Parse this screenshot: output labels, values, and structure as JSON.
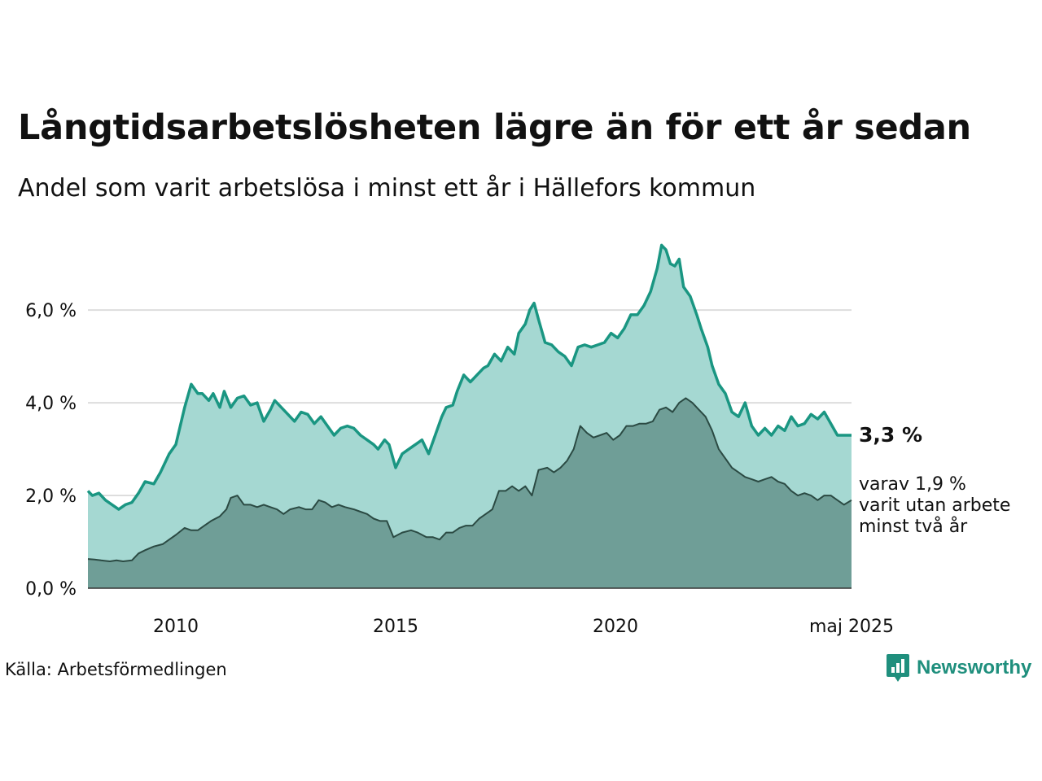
{
  "header": {
    "title": "Långtidsarbetslösheten lägre än för ett år sedan",
    "subtitle": "Andel som varit arbetslösa i minst ett år i Hällefors kommun"
  },
  "annotation": {
    "main_value": "3,3 %",
    "note_lines": [
      "varav 1,9 %",
      "varit utan arbete",
      "minst två år"
    ]
  },
  "footer": {
    "source": "Källa: Arbetsförmedlingen",
    "brand": "Newsworthy",
    "brand_icon": "bar-chart-icon"
  },
  "colors": {
    "series1_line": "#1a9682",
    "series1_fill": "#a5d8d2",
    "series2_line": "#2b4a43",
    "series2_fill": "#6f9e97",
    "grid": "#dddddd",
    "brand": "#1f8f7d"
  },
  "chart_data": {
    "type": "area",
    "grid": true,
    "ylim": [
      0,
      7.6
    ],
    "yticks": [
      {
        "value": 0,
        "label": "0,0 %"
      },
      {
        "value": 2,
        "label": "2,0 %"
      },
      {
        "value": 4,
        "label": "4,0 %"
      },
      {
        "value": 6,
        "label": "6,0 %"
      }
    ],
    "xticks": [
      {
        "value": 2010,
        "label": "2010"
      },
      {
        "value": 2015,
        "label": "2015"
      },
      {
        "value": 2020,
        "label": "2020"
      },
      {
        "value": 2025.37,
        "label": "maj 2025"
      }
    ],
    "xlim": [
      2008.0,
      2025.37
    ],
    "series": [
      {
        "x": [
          2008.0,
          2008.1,
          2008.25,
          2008.4,
          2008.55,
          2008.7,
          2008.85,
          2009.0,
          2009.15,
          2009.3,
          2009.5,
          2009.65,
          2009.85,
          2010.0,
          2010.15,
          2010.2,
          2010.35,
          2010.5,
          2010.6,
          2010.75,
          2010.85,
          2011.0,
          2011.1,
          2011.25,
          2011.4,
          2011.55,
          2011.7,
          2011.85,
          2012.0,
          2012.15,
          2012.25,
          2012.4,
          2012.55,
          2012.7,
          2012.85,
          2013.0,
          2013.15,
          2013.3,
          2013.45,
          2013.6,
          2013.75,
          2013.9,
          2014.05,
          2014.2,
          2014.35,
          2014.5,
          2014.6,
          2014.75,
          2014.85,
          2015.0,
          2015.15,
          2015.3,
          2015.45,
          2015.6,
          2015.75,
          2015.9,
          2016.05,
          2016.15,
          2016.3,
          2016.4,
          2016.55,
          2016.7,
          2016.85,
          2017.0,
          2017.1,
          2017.25,
          2017.4,
          2017.55,
          2017.7,
          2017.8,
          2017.95,
          2018.05,
          2018.15,
          2018.25,
          2018.4,
          2018.55,
          2018.7,
          2018.85,
          2019.0,
          2019.15,
          2019.3,
          2019.45,
          2019.6,
          2019.75,
          2019.9,
          2020.05,
          2020.2,
          2020.35,
          2020.5,
          2020.65,
          2020.8,
          2020.95,
          2021.05,
          2021.15,
          2021.25,
          2021.35,
          2021.45,
          2021.55,
          2021.7,
          2021.85,
          2021.95,
          2022.1,
          2022.2,
          2022.35,
          2022.5,
          2022.65,
          2022.8,
          2022.95,
          2023.1,
          2023.25,
          2023.4,
          2023.55,
          2023.7,
          2023.85,
          2024.0,
          2024.15,
          2024.3,
          2024.45,
          2024.6,
          2024.75,
          2024.9,
          2025.05,
          2025.2,
          2025.37
        ],
        "y": [
          2.1,
          2.0,
          2.05,
          1.9,
          1.8,
          1.7,
          1.8,
          1.85,
          2.05,
          2.3,
          2.25,
          2.5,
          2.9,
          3.1,
          3.7,
          3.9,
          4.4,
          4.2,
          4.2,
          4.05,
          4.2,
          3.9,
          4.25,
          3.9,
          4.1,
          4.15,
          3.95,
          4.0,
          3.6,
          3.85,
          4.05,
          3.9,
          3.75,
          3.6,
          3.8,
          3.75,
          3.55,
          3.7,
          3.5,
          3.3,
          3.45,
          3.5,
          3.45,
          3.3,
          3.2,
          3.1,
          3.0,
          3.2,
          3.1,
          2.6,
          2.9,
          3.0,
          3.1,
          3.2,
          2.9,
          3.3,
          3.7,
          3.9,
          3.95,
          4.25,
          4.6,
          4.45,
          4.6,
          4.75,
          4.8,
          5.05,
          4.9,
          5.2,
          5.05,
          5.5,
          5.7,
          6.0,
          6.15,
          5.8,
          5.3,
          5.25,
          5.1,
          5.0,
          4.8,
          5.2,
          5.25,
          5.2,
          5.25,
          5.3,
          5.5,
          5.4,
          5.6,
          5.9,
          5.9,
          6.1,
          6.4,
          6.9,
          7.4,
          7.3,
          7.0,
          6.95,
          7.1,
          6.5,
          6.3,
          5.9,
          5.6,
          5.2,
          4.8,
          4.4,
          4.2,
          3.8,
          3.7,
          4.0,
          3.5,
          3.3,
          3.45,
          3.3,
          3.5,
          3.4,
          3.7,
          3.5,
          3.55,
          3.75,
          3.65,
          3.8,
          3.55,
          3.3,
          3.3,
          3.3
        ]
      },
      {
        "x": [
          2008.0,
          2008.15,
          2008.3,
          2008.5,
          2008.65,
          2008.8,
          2009.0,
          2009.15,
          2009.3,
          2009.5,
          2009.7,
          2009.85,
          2010.0,
          2010.2,
          2010.35,
          2010.5,
          2010.65,
          2010.8,
          2011.0,
          2011.15,
          2011.25,
          2011.4,
          2011.55,
          2011.7,
          2011.85,
          2012.0,
          2012.15,
          2012.3,
          2012.45,
          2012.6,
          2012.8,
          2012.95,
          2013.1,
          2013.25,
          2013.4,
          2013.55,
          2013.7,
          2013.85,
          2014.05,
          2014.2,
          2014.35,
          2014.5,
          2014.65,
          2014.8,
          2014.95,
          2015.15,
          2015.35,
          2015.5,
          2015.7,
          2015.85,
          2016.0,
          2016.15,
          2016.3,
          2016.45,
          2016.6,
          2016.75,
          2016.9,
          2017.05,
          2017.2,
          2017.35,
          2017.5,
          2017.65,
          2017.8,
          2017.95,
          2018.1,
          2018.25,
          2018.45,
          2018.6,
          2018.75,
          2018.9,
          2019.05,
          2019.2,
          2019.35,
          2019.5,
          2019.65,
          2019.8,
          2019.95,
          2020.1,
          2020.25,
          2020.4,
          2020.55,
          2020.7,
          2020.85,
          2021.0,
          2021.15,
          2021.3,
          2021.45,
          2021.6,
          2021.75,
          2021.9,
          2022.05,
          2022.2,
          2022.35,
          2022.5,
          2022.65,
          2022.8,
          2022.95,
          2023.1,
          2023.25,
          2023.4,
          2023.55,
          2023.7,
          2023.85,
          2024.0,
          2024.15,
          2024.3,
          2024.45,
          2024.6,
          2024.75,
          2024.9,
          2025.05,
          2025.2,
          2025.37
        ],
        "y": [
          0.63,
          0.62,
          0.6,
          0.58,
          0.6,
          0.58,
          0.6,
          0.75,
          0.82,
          0.9,
          0.95,
          1.05,
          1.15,
          1.3,
          1.25,
          1.25,
          1.35,
          1.45,
          1.55,
          1.7,
          1.95,
          2.0,
          1.8,
          1.8,
          1.75,
          1.8,
          1.75,
          1.7,
          1.6,
          1.7,
          1.75,
          1.7,
          1.7,
          1.9,
          1.85,
          1.75,
          1.8,
          1.75,
          1.7,
          1.65,
          1.6,
          1.5,
          1.45,
          1.45,
          1.1,
          1.2,
          1.25,
          1.2,
          1.1,
          1.1,
          1.05,
          1.2,
          1.2,
          1.3,
          1.35,
          1.35,
          1.5,
          1.6,
          1.7,
          2.1,
          2.1,
          2.2,
          2.1,
          2.2,
          2.0,
          2.55,
          2.6,
          2.5,
          2.6,
          2.75,
          3.0,
          3.5,
          3.35,
          3.25,
          3.3,
          3.35,
          3.2,
          3.3,
          3.5,
          3.5,
          3.55,
          3.55,
          3.6,
          3.85,
          3.9,
          3.8,
          4.0,
          4.1,
          4.0,
          3.85,
          3.7,
          3.4,
          3.0,
          2.8,
          2.6,
          2.5,
          2.4,
          2.35,
          2.3,
          2.35,
          2.4,
          2.3,
          2.25,
          2.1,
          2.0,
          2.05,
          2.0,
          1.9,
          2.0,
          2.0,
          1.9,
          1.8,
          1.9
        ]
      }
    ]
  }
}
